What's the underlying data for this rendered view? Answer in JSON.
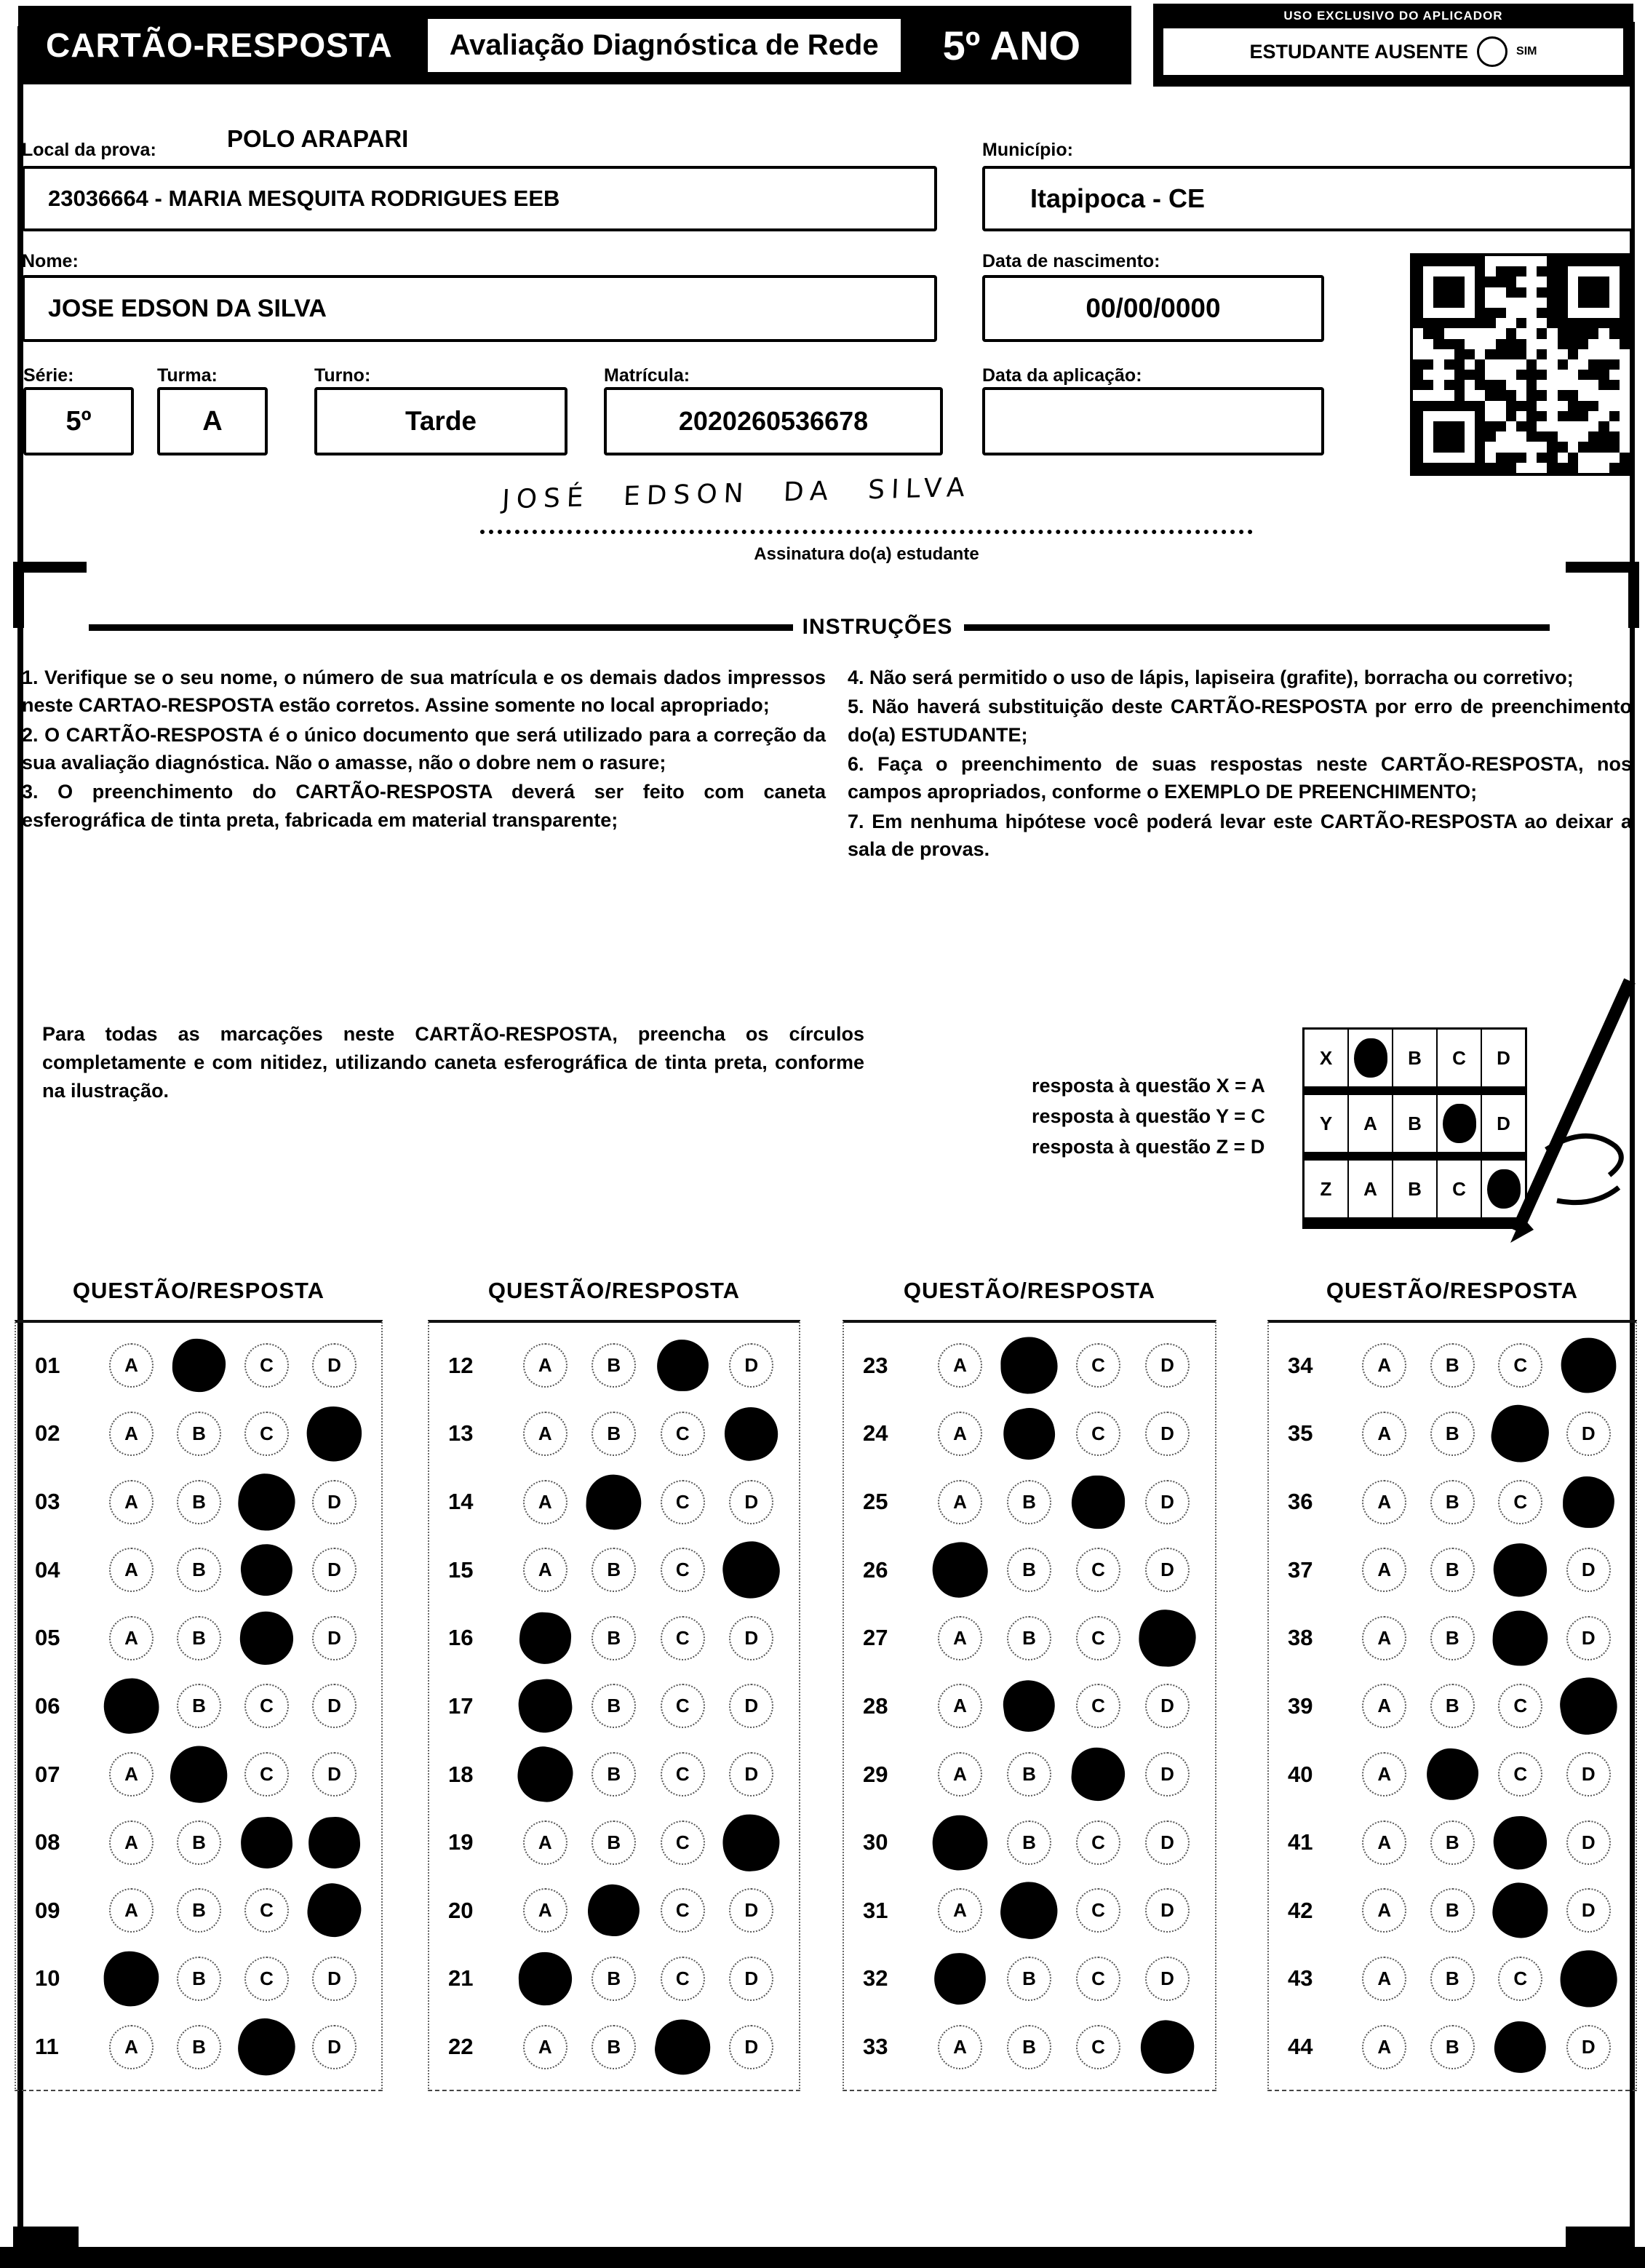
{
  "header": {
    "title": "CARTÃO-RESPOSTA",
    "subtitle": "Avaliação Diagnóstica de Rede",
    "grade": "5º ANO",
    "aplicador_label": "USO EXCLUSIVO DO APLICADOR",
    "ausente_label": "ESTUDANTE AUSENTE",
    "ausente_option": "SIM"
  },
  "form": {
    "local_label": "Local da prova:",
    "local_value": "POLO ARAPARI",
    "school_value": "23036664 - MARIA MESQUITA RODRIGUES EEB",
    "municipio_label": "Município:",
    "municipio_value": "Itapipoca - CE",
    "nome_label": "Nome:",
    "nome_value": "JOSE EDSON DA SILVA",
    "nascimento_label": "Data de nascimento:",
    "nascimento_value": "00/00/0000",
    "serie_label": "Série:",
    "serie_value": "5º",
    "turma_label": "Turma:",
    "turma_value": "A",
    "turno_label": "Turno:",
    "turno_value": "Tarde",
    "matricula_label": "Matrícula:",
    "matricula_value": "2020260536678",
    "aplicacao_label": "Data da aplicação:",
    "aplicacao_value": "",
    "assinatura_value": "JOSÉ EDSON DA SILVA",
    "assinatura_label": "Assinatura do(a) estudante"
  },
  "instructions": {
    "title": "INSTRUÇÕES",
    "left": [
      "1. Verifique se o seu nome, o número de sua matrícula e os demais dados impressos neste CARTAO-RESPOSTA estão corretos. Assine somente no local apropriado;",
      "2. O CARTÃO-RESPOSTA é o único documento que será utilizado para a correção da sua avaliação diagnóstica. Não o amasse, não o dobre nem o rasure;",
      "3. O preenchimento do CARTÃO-RESPOSTA deverá ser feito com caneta esferográfica de tinta preta, fabricada em material transparente;"
    ],
    "right": [
      "4. Não será permitido o uso de lápis, lapiseira (grafite), borracha ou corretivo;",
      "5. Não haverá substituição deste CARTÃO-RESPOSTA por erro de preenchimento do(a) ESTUDANTE;",
      "6. Faça o preenchimento de suas respostas neste CARTÃO-RESPOSTA, nos campos apropriados, conforme o EXEMPLO DE PREENCHIMENTO;",
      "7. Em nenhuma hipótese você poderá levar este CARTÃO-RESPOSTA ao deixar a sala de provas."
    ]
  },
  "example": {
    "text": "Para todas as marcações neste CARTÃO-RESPOSTA, preencha os círculos completamente e com nitidez, utilizando caneta esferográfica de tinta preta, conforme na ilustração.",
    "legend": [
      "resposta à questão X = A",
      "resposta à questão Y = C",
      "resposta à questão Z = D"
    ],
    "options": [
      "A",
      "B",
      "C",
      "D"
    ],
    "grid": [
      {
        "row": "X",
        "marked": "A"
      },
      {
        "row": "Y",
        "marked": "C"
      },
      {
        "row": "Z",
        "marked": "D"
      }
    ]
  },
  "answers": {
    "header": "QUESTÃO/RESPOSTA",
    "options": [
      "A",
      "B",
      "C",
      "D"
    ],
    "columns": [
      {
        "items": [
          {
            "q": "01",
            "marked": [
              "B"
            ]
          },
          {
            "q": "02",
            "marked": [
              "D"
            ]
          },
          {
            "q": "03",
            "marked": [
              "C"
            ]
          },
          {
            "q": "04",
            "marked": [
              "C"
            ]
          },
          {
            "q": "05",
            "marked": [
              "C"
            ]
          },
          {
            "q": "06",
            "marked": [
              "A"
            ]
          },
          {
            "q": "07",
            "marked": [
              "B"
            ]
          },
          {
            "q": "08",
            "marked": [
              "C",
              "D"
            ]
          },
          {
            "q": "09",
            "marked": [
              "D"
            ]
          },
          {
            "q": "10",
            "marked": [
              "A"
            ]
          },
          {
            "q": "11",
            "marked": [
              "C"
            ]
          }
        ]
      },
      {
        "items": [
          {
            "q": "12",
            "marked": [
              "C"
            ]
          },
          {
            "q": "13",
            "marked": [
              "D"
            ]
          },
          {
            "q": "14",
            "marked": [
              "B"
            ]
          },
          {
            "q": "15",
            "marked": [
              "D"
            ]
          },
          {
            "q": "16",
            "marked": [
              "A"
            ]
          },
          {
            "q": "17",
            "marked": [
              "A"
            ]
          },
          {
            "q": "18",
            "marked": [
              "A"
            ]
          },
          {
            "q": "19",
            "marked": [
              "D"
            ]
          },
          {
            "q": "20",
            "marked": [
              "B"
            ]
          },
          {
            "q": "21",
            "marked": [
              "A"
            ]
          },
          {
            "q": "22",
            "marked": [
              "C"
            ]
          }
        ]
      },
      {
        "items": [
          {
            "q": "23",
            "marked": [
              "B"
            ]
          },
          {
            "q": "24",
            "marked": [
              "B"
            ]
          },
          {
            "q": "25",
            "marked": [
              "C"
            ]
          },
          {
            "q": "26",
            "marked": [
              "A"
            ]
          },
          {
            "q": "27",
            "marked": [
              "D"
            ]
          },
          {
            "q": "28",
            "marked": [
              "B"
            ]
          },
          {
            "q": "29",
            "marked": [
              "C"
            ]
          },
          {
            "q": "30",
            "marked": [
              "A"
            ]
          },
          {
            "q": "31",
            "marked": [
              "B"
            ]
          },
          {
            "q": "32",
            "marked": [
              "A"
            ]
          },
          {
            "q": "33",
            "marked": [
              "D"
            ]
          }
        ]
      },
      {
        "items": [
          {
            "q": "34",
            "marked": [
              "D"
            ]
          },
          {
            "q": "35",
            "marked": [
              "C"
            ]
          },
          {
            "q": "36",
            "marked": [
              "D"
            ]
          },
          {
            "q": "37",
            "marked": [
              "C"
            ]
          },
          {
            "q": "38",
            "marked": [
              "C"
            ]
          },
          {
            "q": "39",
            "marked": [
              "D"
            ]
          },
          {
            "q": "40",
            "marked": [
              "B"
            ]
          },
          {
            "q": "41",
            "marked": [
              "C"
            ]
          },
          {
            "q": "42",
            "marked": [
              "C"
            ]
          },
          {
            "q": "43",
            "marked": [
              "D"
            ]
          },
          {
            "q": "44",
            "marked": [
              "C"
            ]
          }
        ]
      }
    ]
  }
}
